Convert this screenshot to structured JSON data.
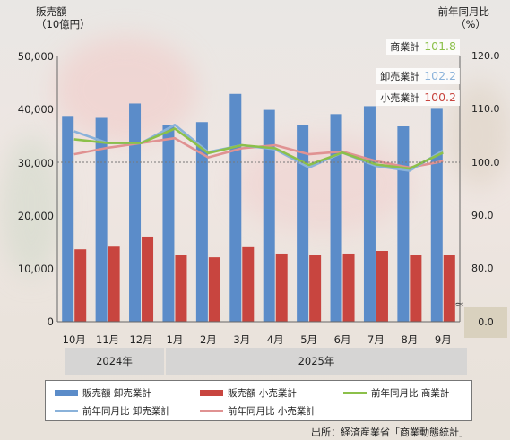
{
  "chart_data": {
    "type": "bar",
    "categories": [
      "10月",
      "11月",
      "12月",
      "1月",
      "2月",
      "3月",
      "4月",
      "5月",
      "6月",
      "7月",
      "8月",
      "9月"
    ],
    "years": [
      {
        "label": "2024年",
        "months": 3
      },
      {
        "label": "2025年",
        "months": 9
      }
    ],
    "y_left_label": [
      "販売額",
      "（10億円）"
    ],
    "y_right_label": [
      "前年同月比",
      "（%）"
    ],
    "y_left_ticks": [
      "50,000",
      "40,000",
      "30,000",
      "20,000",
      "10,000",
      "0"
    ],
    "y_right_ticks": [
      "120.0",
      "110.0",
      "100.0",
      "90.0",
      "80.0",
      "0.0"
    ],
    "ylim": [
      0,
      50000
    ],
    "y2lim": [
      75,
      120
    ],
    "y2_break": "≈",
    "reference_line": 100,
    "bar_series": [
      {
        "name": "販売額 卸売業計",
        "color": "#5b8cc9",
        "values": [
          38500,
          38300,
          41000,
          37000,
          37500,
          42800,
          39800,
          37000,
          39000,
          40500,
          36700,
          40000
        ]
      },
      {
        "name": "販売額 小売業計",
        "color": "#c8453f",
        "values": [
          13600,
          14100,
          16000,
          12500,
          12100,
          14000,
          12800,
          12600,
          12800,
          13300,
          12600,
          12500
        ]
      }
    ],
    "line_series": [
      {
        "name": "前年同月比 商業計",
        "color": "#8cc04a",
        "values": [
          104.3,
          103.6,
          103.6,
          106.3,
          101.7,
          103.2,
          102.6,
          99.5,
          101.8,
          99.6,
          98.8,
          101.8
        ]
      },
      {
        "name": "前年同月比 卸売業計",
        "color": "#8ab2da",
        "values": [
          105.8,
          103.6,
          103.6,
          107.0,
          101.9,
          103.2,
          102.4,
          99.0,
          101.8,
          99.3,
          98.4,
          102.2
        ]
      },
      {
        "name": "前年同月比 小売業計",
        "color": "#e09292",
        "values": [
          101.5,
          102.7,
          103.6,
          104.5,
          100.9,
          102.6,
          103.2,
          101.5,
          102.0,
          100.2,
          99.0,
          100.2
        ]
      }
    ],
    "callouts": [
      {
        "label": "商業計",
        "value": "101.8",
        "color": "#8cc04a"
      },
      {
        "label": "卸売業計",
        "value": "102.2",
        "color": "#8ab2da"
      },
      {
        "label": "小売業計",
        "value": "100.2",
        "color": "#c8453f"
      }
    ],
    "legend_placement": "bottom",
    "grid": false
  },
  "source": "出所：経済産業省「商業動態統計」"
}
